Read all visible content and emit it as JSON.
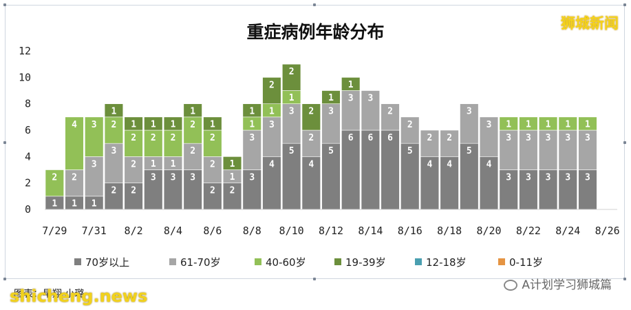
{
  "brand": "狮城新闻",
  "credit": "图表：早翔·小璐",
  "watermark_left": "shicheng.news",
  "watermark_right": "A计划学习狮城篇",
  "colors": {
    "70岁以上": "#7f7f7f",
    "61-70岁": "#a6a6a6",
    "40-60岁": "#92c057",
    "19-39岁": "#6c8f3c",
    "12-18岁": "#4a9fb0",
    "0-11岁": "#e59443"
  },
  "chart_data": {
    "type": "bar",
    "stacked": true,
    "title": "重症病例年龄分布",
    "ylim": [
      0,
      12
    ],
    "yticks": [
      0,
      2,
      4,
      6,
      8,
      10,
      12
    ],
    "grid": false,
    "legend_position": "bottom",
    "categories": [
      "7/29",
      "7/30",
      "7/31",
      "8/1",
      "8/2",
      "8/3",
      "8/4",
      "8/5",
      "8/6",
      "8/7",
      "8/8",
      "8/9",
      "8/10",
      "8/11",
      "8/12",
      "8/13",
      "8/14",
      "8/15",
      "8/16",
      "8/17",
      "8/18",
      "8/19",
      "8/20",
      "8/21",
      "8/22",
      "8/23",
      "8/24",
      "8/25",
      "8/26"
    ],
    "xtick_labels": [
      "7/29",
      "7/31",
      "8/2",
      "8/4",
      "8/6",
      "8/8",
      "8/10",
      "8/12",
      "8/14",
      "8/16",
      "8/18",
      "8/20",
      "8/22",
      "8/24",
      "8/26"
    ],
    "series": [
      {
        "name": "70岁以上",
        "values": [
          1,
          1,
          1,
          2,
          2,
          3,
          3,
          3,
          2,
          2,
          3,
          4,
          5,
          4,
          5,
          6,
          6,
          6,
          5,
          4,
          4,
          5,
          4,
          3,
          3,
          3,
          3,
          3,
          0
        ]
      },
      {
        "name": "61-70岁",
        "values": [
          0,
          2,
          3,
          3,
          2,
          1,
          1,
          2,
          2,
          1,
          3,
          3,
          3,
          2,
          3,
          3,
          3,
          2,
          2,
          2,
          2,
          3,
          3,
          3,
          3,
          3,
          3,
          3,
          0
        ]
      },
      {
        "name": "40-60岁",
        "values": [
          2,
          4,
          3,
          2,
          2,
          2,
          2,
          2,
          2,
          0,
          1,
          1,
          1,
          0,
          0,
          0,
          0,
          0,
          0,
          0,
          0,
          0,
          0,
          1,
          1,
          1,
          1,
          1,
          0
        ]
      },
      {
        "name": "19-39岁",
        "values": [
          0,
          0,
          0,
          1,
          1,
          1,
          1,
          1,
          1,
          1,
          1,
          2,
          2,
          2,
          1,
          1,
          0,
          0,
          0,
          0,
          0,
          0,
          0,
          0,
          0,
          0,
          0,
          0,
          0
        ]
      },
      {
        "name": "12-18岁",
        "values": [
          0,
          0,
          0,
          0,
          0,
          0,
          0,
          0,
          0,
          0,
          0,
          0,
          0,
          0,
          0,
          0,
          0,
          0,
          0,
          0,
          0,
          0,
          0,
          0,
          0,
          0,
          0,
          0,
          0
        ]
      },
      {
        "name": "0-11岁",
        "values": [
          0,
          0,
          0,
          0,
          0,
          0,
          0,
          0,
          0,
          0,
          0,
          0,
          0,
          0,
          0,
          0,
          0,
          0,
          0,
          0,
          0,
          0,
          0,
          0,
          0,
          0,
          0,
          0,
          0
        ]
      }
    ]
  }
}
